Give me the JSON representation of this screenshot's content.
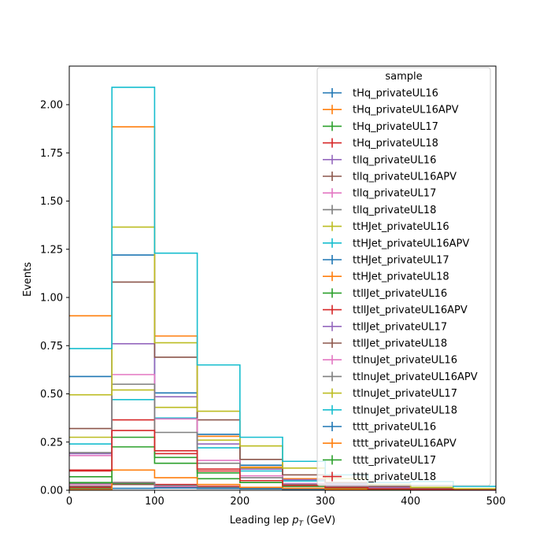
{
  "chart_data": {
    "type": "step_histogram",
    "xlabel_main": "Leading lep ",
    "xlabel_sym": "p",
    "xlabel_sub": "T",
    "xlabel_unit": " (GeV)",
    "ylabel": "Events",
    "xlim": [
      0,
      500
    ],
    "ylim": [
      0,
      2.2
    ],
    "x_ticks": [
      0,
      100,
      200,
      300,
      400,
      500
    ],
    "y_ticks": [
      0.0,
      0.25,
      0.5,
      0.75,
      1.0,
      1.25,
      1.5,
      1.75,
      2.0
    ],
    "y_tick_labels": [
      "0.00",
      "0.25",
      "0.50",
      "0.75",
      "1.00",
      "1.25",
      "1.50",
      "1.75",
      "2.00"
    ],
    "bin_edges": [
      0,
      50,
      100,
      150,
      200,
      250,
      300,
      350,
      400,
      450,
      500
    ],
    "legend_title": "sample",
    "legend_position": "top-right",
    "series": [
      {
        "name": "tHq_privateUL16",
        "color": "#1f77b4",
        "values": [
          0.01,
          0.03,
          0.02,
          0.015,
          0.01,
          0.008,
          0.005,
          0.004,
          0.003,
          0.002
        ]
      },
      {
        "name": "tHq_privateUL16APV",
        "color": "#ff7f0e",
        "values": [
          0.01,
          0.03,
          0.02,
          0.015,
          0.01,
          0.008,
          0.005,
          0.004,
          0.003,
          0.002
        ]
      },
      {
        "name": "tHq_privateUL17",
        "color": "#2ca02c",
        "values": [
          0.012,
          0.035,
          0.025,
          0.018,
          0.012,
          0.009,
          0.006,
          0.004,
          0.003,
          0.002
        ]
      },
      {
        "name": "tHq_privateUL18",
        "color": "#d62728",
        "values": [
          0.015,
          0.04,
          0.03,
          0.02,
          0.015,
          0.01,
          0.007,
          0.005,
          0.003,
          0.002
        ]
      },
      {
        "name": "tllq_privateUL16",
        "color": "#9467bd",
        "values": [
          0.02,
          0.03,
          0.015,
          0.01,
          0.008,
          0.006,
          0.004,
          0.003,
          0.002,
          0.001
        ]
      },
      {
        "name": "tllq_privateUL16APV",
        "color": "#8c564b",
        "values": [
          0.02,
          0.03,
          0.015,
          0.01,
          0.008,
          0.006,
          0.004,
          0.003,
          0.002,
          0.001
        ]
      },
      {
        "name": "tllq_privateUL17",
        "color": "#e377c2",
        "values": [
          0.03,
          0.04,
          0.02,
          0.012,
          0.009,
          0.007,
          0.005,
          0.003,
          0.002,
          0.001
        ]
      },
      {
        "name": "tllq_privateUL18",
        "color": "#7f7f7f",
        "values": [
          0.035,
          0.04,
          0.025,
          0.015,
          0.01,
          0.008,
          0.005,
          0.003,
          0.002,
          0.001
        ]
      },
      {
        "name": "ttHJet_privateUL16",
        "color": "#bcbd22",
        "values": [
          0.275,
          0.52,
          0.43,
          0.26,
          0.115,
          0.055,
          0.03,
          0.015,
          0.008,
          0.004
        ]
      },
      {
        "name": "ttHJet_privateUL16APV",
        "color": "#17becf",
        "values": [
          0.24,
          0.47,
          0.375,
          0.22,
          0.1,
          0.048,
          0.027,
          0.013,
          0.007,
          0.003
        ]
      },
      {
        "name": "ttHJet_privateUL17",
        "color": "#1f77b4",
        "values": [
          0.59,
          1.22,
          0.505,
          0.29,
          0.13,
          0.06,
          0.033,
          0.017,
          0.009,
          0.004
        ]
      },
      {
        "name": "ttHJet_privateUL18",
        "color": "#ff7f0e",
        "values": [
          0.905,
          1.885,
          0.8,
          0.28,
          0.12,
          0.06,
          0.03,
          0.016,
          0.009,
          0.004
        ]
      },
      {
        "name": "ttllJet_privateUL16",
        "color": "#2ca02c",
        "values": [
          0.07,
          0.275,
          0.14,
          0.06,
          0.04,
          0.025,
          0.015,
          0.008,
          0.004,
          0.002
        ]
      },
      {
        "name": "ttllJet_privateUL16APV",
        "color": "#d62728",
        "values": [
          0.1,
          0.365,
          0.19,
          0.1,
          0.05,
          0.03,
          0.018,
          0.009,
          0.005,
          0.002
        ]
      },
      {
        "name": "ttllJet_privateUL17",
        "color": "#9467bd",
        "values": [
          0.19,
          0.76,
          0.485,
          0.24,
          0.11,
          0.055,
          0.03,
          0.015,
          0.008,
          0.004
        ]
      },
      {
        "name": "ttllJet_privateUL18",
        "color": "#8c564b",
        "values": [
          0.32,
          1.08,
          0.69,
          0.365,
          0.16,
          0.08,
          0.04,
          0.02,
          0.01,
          0.005
        ]
      },
      {
        "name": "ttlnuJet_privateUL16",
        "color": "#e377c2",
        "values": [
          0.18,
          0.6,
          0.37,
          0.155,
          0.075,
          0.035,
          0.02,
          0.01,
          0.005,
          0.002
        ]
      },
      {
        "name": "ttlnuJet_privateUL16APV",
        "color": "#7f7f7f",
        "values": [
          0.195,
          0.55,
          0.3,
          0.14,
          0.065,
          0.03,
          0.018,
          0.009,
          0.004,
          0.002
        ]
      },
      {
        "name": "ttlnuJet_privateUL17",
        "color": "#bcbd22",
        "values": [
          0.495,
          1.365,
          0.765,
          0.41,
          0.23,
          0.115,
          0.06,
          0.03,
          0.015,
          0.008
        ]
      },
      {
        "name": "ttlnuJet_privateUL18",
        "color": "#17becf",
        "values": [
          0.735,
          2.09,
          1.23,
          0.65,
          0.275,
          0.15,
          0.08,
          0.04,
          0.045,
          0.02
        ]
      },
      {
        "name": "tttt_privateUL16",
        "color": "#1f77b4",
        "values": [
          0.003,
          0.01,
          0.012,
          0.01,
          0.008,
          0.006,
          0.005,
          0.003,
          0.002,
          0.001
        ]
      },
      {
        "name": "tttt_privateUL16APV",
        "color": "#ff7f0e",
        "values": [
          0.002,
          0.105,
          0.065,
          0.03,
          0.015,
          0.01,
          0.006,
          0.004,
          0.002,
          0.001
        ]
      },
      {
        "name": "tttt_privateUL17",
        "color": "#2ca02c",
        "values": [
          0.04,
          0.225,
          0.17,
          0.09,
          0.04,
          0.02,
          0.012,
          0.006,
          0.003,
          0.001
        ]
      },
      {
        "name": "tttt_privateUL18",
        "color": "#d62728",
        "values": [
          0.105,
          0.31,
          0.205,
          0.11,
          0.05,
          0.025,
          0.014,
          0.007,
          0.004,
          0.002
        ]
      }
    ]
  }
}
